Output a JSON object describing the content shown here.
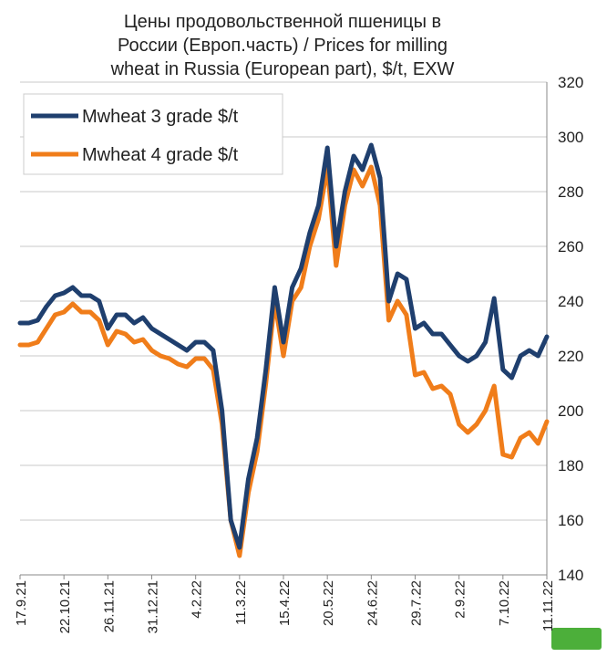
{
  "chart_data": {
    "type": "line",
    "title": [
      "Цены продовольственной пшеницы в",
      "России (Европ.часть) / Prices for milling",
      "wheat in Russia (European part), $/t, EXW"
    ],
    "categories": [
      "17.9.21",
      null,
      null,
      null,
      null,
      "22.10.21",
      null,
      null,
      null,
      null,
      "26.11.21",
      null,
      null,
      null,
      null,
      "31.12.21",
      null,
      null,
      null,
      null,
      "4.2.22",
      null,
      null,
      null,
      null,
      "11.3.22",
      null,
      null,
      null,
      null,
      "15.4.22",
      null,
      null,
      null,
      null,
      "20.5.22",
      null,
      null,
      null,
      null,
      "24.6.22",
      null,
      null,
      null,
      null,
      "29.7.22",
      null,
      null,
      null,
      null,
      "2.9.22",
      null,
      null,
      null,
      null,
      "7.10.22",
      null,
      null,
      null,
      null,
      "11.11.22"
    ],
    "series": [
      {
        "name": "Mwheat 3 grade $/t",
        "color": "#1f3f6e",
        "values": [
          232,
          232,
          233,
          238,
          242,
          243,
          245,
          242,
          242,
          240,
          230,
          235,
          235,
          232,
          234,
          230,
          228,
          226,
          224,
          222,
          225,
          225,
          222,
          200,
          160,
          150,
          175,
          190,
          215,
          245,
          225,
          245,
          252,
          265,
          275,
          296,
          260,
          280,
          293,
          288,
          297,
          285,
          240,
          250,
          248,
          230,
          232,
          228,
          228,
          224,
          220,
          218,
          220,
          225,
          241,
          215,
          212,
          220,
          222,
          220,
          227
        ]
      },
      {
        "name": "Mwheat 4 grade $/t",
        "color": "#f07d1a",
        "values": [
          224,
          224,
          225,
          230,
          235,
          236,
          239,
          236,
          236,
          233,
          224,
          229,
          228,
          225,
          226,
          222,
          220,
          219,
          217,
          216,
          219,
          219,
          215,
          195,
          160,
          147,
          170,
          185,
          210,
          240,
          220,
          240,
          245,
          260,
          270,
          289,
          253,
          275,
          288,
          282,
          289,
          275,
          233,
          240,
          235,
          213,
          214,
          208,
          209,
          206,
          195,
          192,
          195,
          200,
          209,
          184,
          183,
          190,
          192,
          188,
          196
        ]
      }
    ],
    "ylim": [
      140,
      320
    ],
    "yticks": [
      140,
      160,
      180,
      200,
      220,
      240,
      260,
      280,
      300,
      320
    ],
    "grid": true,
    "legend": "upper left"
  }
}
